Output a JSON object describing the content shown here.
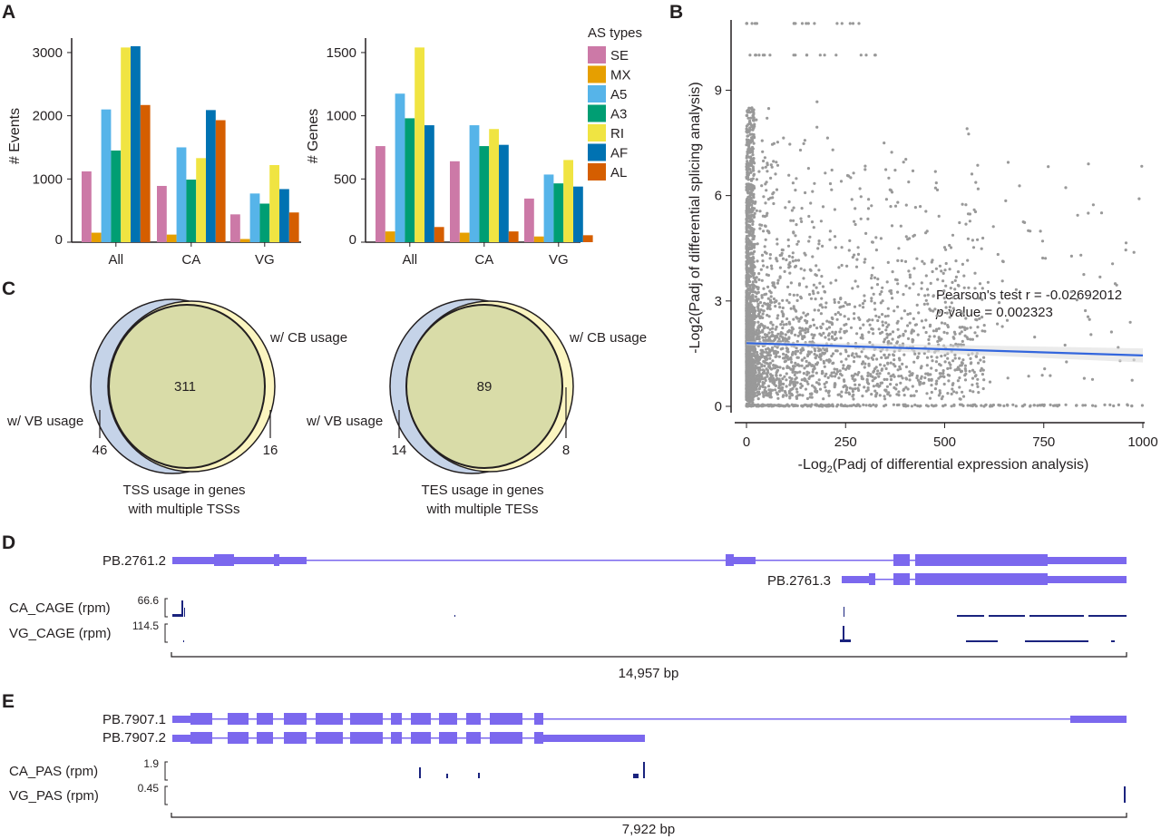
{
  "panels": {
    "a": "A",
    "b": "B",
    "c": "C",
    "d": "D",
    "e": "E"
  },
  "chart_data": [
    {
      "type": "bar",
      "id": "events",
      "categories": [
        "All",
        "CA",
        "VG"
      ],
      "ylabel": "# Events",
      "yticks": [
        "0",
        "1000",
        "2000",
        "3000"
      ],
      "ylim": [
        0,
        3200
      ],
      "series": [
        {
          "name": "SE",
          "values": [
            1120,
            890,
            440
          ]
        },
        {
          "name": "MX",
          "values": [
            150,
            120,
            50
          ]
        },
        {
          "name": "A5",
          "values": [
            2100,
            1500,
            770
          ]
        },
        {
          "name": "A3",
          "values": [
            1450,
            990,
            610
          ]
        },
        {
          "name": "RI",
          "values": [
            3080,
            1330,
            1220
          ]
        },
        {
          "name": "AF",
          "values": [
            3100,
            2090,
            840
          ]
        },
        {
          "name": "AL",
          "values": [
            2170,
            1930,
            470
          ]
        }
      ]
    },
    {
      "type": "bar",
      "id": "genes",
      "categories": [
        "All",
        "CA",
        "VG"
      ],
      "ylabel": "# Genes",
      "yticks": [
        "0",
        "500",
        "1000",
        "1500"
      ],
      "ylim": [
        0,
        1600
      ],
      "series": [
        {
          "name": "SE",
          "values": [
            760,
            640,
            345
          ]
        },
        {
          "name": "MX",
          "values": [
            85,
            75,
            45
          ]
        },
        {
          "name": "A5",
          "values": [
            1175,
            925,
            535
          ]
        },
        {
          "name": "A3",
          "values": [
            980,
            760,
            465
          ]
        },
        {
          "name": "RI",
          "values": [
            1540,
            895,
            650
          ]
        },
        {
          "name": "AF",
          "values": [
            925,
            770,
            440
          ]
        },
        {
          "name": "AL",
          "values": [
            120,
            85,
            55
          ]
        }
      ]
    },
    {
      "type": "scatter",
      "id": "correlation",
      "xlabel": "-Log",
      "xlabel_sub": "2",
      "xlabel_rest": "(Padj of differential expression analysis)",
      "ylabel": "-Log2(Padj of differential splicing analysis)",
      "xticks": [
        "0",
        "250",
        "500",
        "750",
        "1000"
      ],
      "yticks": [
        "0",
        "3",
        "6",
        "9"
      ],
      "xlim": [
        0,
        1000
      ],
      "ylim": [
        0,
        11
      ],
      "regression": {
        "x": [
          0,
          1000
        ],
        "y": [
          1.8,
          1.45
        ]
      },
      "stat_line1": "Pearson's test r = -0.02692012",
      "stat_p": "p",
      "stat_line2": "-value = 0.002323"
    }
  ],
  "legend": {
    "title": "AS types",
    "items": [
      {
        "label": "SE",
        "color": "#cc79a7"
      },
      {
        "label": "MX",
        "color": "#e69f00"
      },
      {
        "label": "A5",
        "color": "#56b4e9"
      },
      {
        "label": "A3",
        "color": "#009e73"
      },
      {
        "label": "RI",
        "color": "#f0e442"
      },
      {
        "label": "AF",
        "color": "#0072b2"
      },
      {
        "label": "AL",
        "color": "#d55e00"
      }
    ]
  },
  "venn": [
    {
      "overlap": "311",
      "cb_only": "16",
      "vb_only": "46",
      "cb_label": "w/ CB usage",
      "vb_label": "w/ VB usage",
      "caption1": "TSS usage in genes",
      "caption2": "with multiple TSSs"
    },
    {
      "overlap": "89",
      "cb_only": "8",
      "vb_only": "14",
      "cb_label": "w/ CB usage",
      "vb_label": "w/ VB usage",
      "caption1": "TES usage in genes",
      "caption2": "with multiple TESs"
    }
  ],
  "tracks_d": {
    "iso1": "PB.2761.2",
    "iso2": "PB.2761.3",
    "t1_label": "CA_CAGE (rpm)",
    "t1_max": "66.6",
    "t2_label": "VG_CAGE (rpm)",
    "t2_max": "114.5",
    "scale": "14,957 bp"
  },
  "tracks_e": {
    "iso1": "PB.7907.1",
    "iso2": "PB.7907.2",
    "t1_label": "CA_PAS (rpm)",
    "t1_max": "1.9",
    "t2_label": "VG_PAS (rpm)",
    "t2_max": "0.45",
    "scale": "7,922 bp"
  },
  "colors": {
    "transcript": "#7b68ee",
    "signal": "#1a237e",
    "scatter": "#999999",
    "regression": "#3366dd",
    "venn_vb": "#c5d3e8",
    "venn_cb": "#fbf5c0",
    "venn_overlap": "#d9dca8"
  }
}
